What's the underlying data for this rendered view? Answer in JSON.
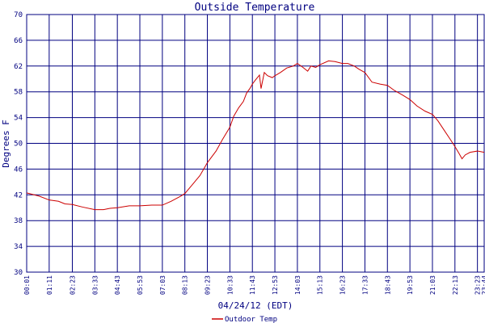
{
  "chart_data": {
    "type": "line",
    "title": "Outside Temperature",
    "xlabel": "04/24/12 (EDT)",
    "ylabel": "Degrees F",
    "ylim": [
      30,
      70
    ],
    "yticks": [
      30,
      34,
      38,
      42,
      46,
      50,
      54,
      58,
      62,
      66,
      70
    ],
    "xticks": [
      "00:01",
      "01:11",
      "02:23",
      "03:33",
      "04:43",
      "05:53",
      "07:03",
      "08:13",
      "09:23",
      "10:33",
      "11:43",
      "12:53",
      "14:03",
      "15:13",
      "16:23",
      "17:33",
      "18:43",
      "19:53",
      "21:03",
      "22:13",
      "23:23",
      "23:44"
    ],
    "grid": true,
    "legend_position": "bottom-left",
    "colors": {
      "series": "#cc0000",
      "grid": "#000080",
      "frame": "#000080",
      "text": "#000080",
      "background": "#ffffff"
    },
    "series": [
      {
        "name": "Outdoor Temp",
        "x": [
          "00:01",
          "00:40",
          "01:11",
          "01:40",
          "02:00",
          "02:23",
          "02:55",
          "03:33",
          "04:00",
          "04:20",
          "04:43",
          "05:20",
          "05:53",
          "06:30",
          "07:03",
          "07:30",
          "08:00",
          "08:13",
          "08:35",
          "09:00",
          "09:23",
          "09:50",
          "10:10",
          "10:33",
          "10:45",
          "11:00",
          "11:15",
          "11:25",
          "11:35",
          "11:43",
          "11:52",
          "12:05",
          "12:10",
          "12:16",
          "12:20",
          "12:30",
          "12:45",
          "12:53",
          "13:10",
          "13:30",
          "13:50",
          "14:03",
          "14:20",
          "14:35",
          "14:45",
          "15:00",
          "15:13",
          "15:40",
          "16:00",
          "16:23",
          "16:40",
          "17:00",
          "17:15",
          "17:33",
          "17:55",
          "18:20",
          "18:43",
          "19:05",
          "19:30",
          "19:53",
          "20:15",
          "20:40",
          "21:03",
          "21:20",
          "21:40",
          "22:00",
          "22:13",
          "22:25",
          "22:35",
          "22:45",
          "23:00",
          "23:23",
          "23:44"
        ],
        "values": [
          42.3,
          41.8,
          41.2,
          41.0,
          40.6,
          40.5,
          40.1,
          39.7,
          39.7,
          39.9,
          40.0,
          40.3,
          40.3,
          40.4,
          40.4,
          41.0,
          41.8,
          42.2,
          43.5,
          45.0,
          47.0,
          48.8,
          50.6,
          52.5,
          54.2,
          55.5,
          56.5,
          57.8,
          58.5,
          59.2,
          59.8,
          60.6,
          58.5,
          60.0,
          61.0,
          60.5,
          60.2,
          60.5,
          61.0,
          61.7,
          62.0,
          62.4,
          61.8,
          61.2,
          62.0,
          61.8,
          62.2,
          62.8,
          62.7,
          62.4,
          62.4,
          62.0,
          61.5,
          61.0,
          59.5,
          59.2,
          59.0,
          58.2,
          57.5,
          56.8,
          55.8,
          55.0,
          54.5,
          53.5,
          52.0,
          50.5,
          49.5,
          48.5,
          47.6,
          48.2,
          48.6,
          48.8,
          48.6
        ]
      }
    ]
  }
}
